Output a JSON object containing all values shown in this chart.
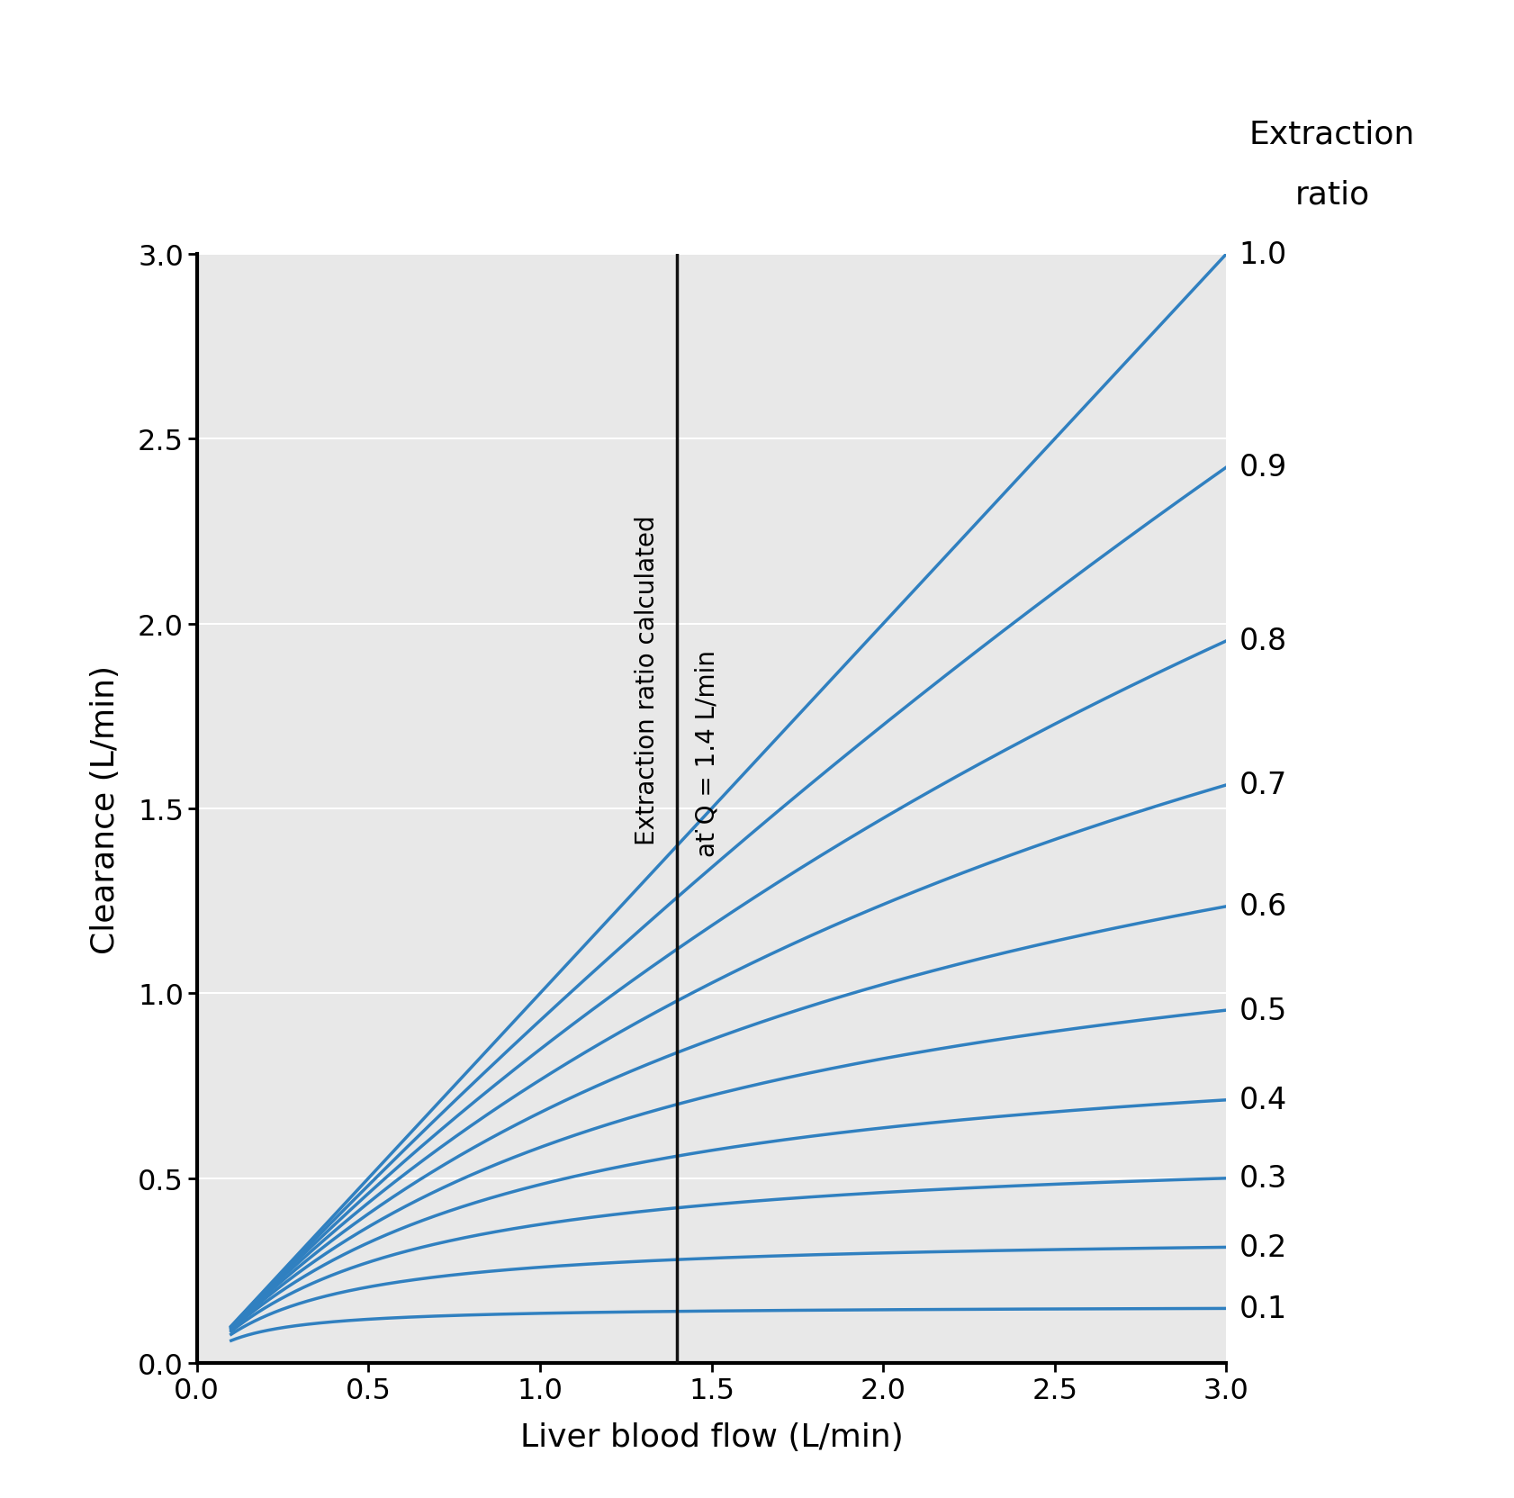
{
  "xlabel": "Liver blood flow (L/min)",
  "ylabel": "Clearance (L/min)",
  "extraction_label_line1": "Extraction",
  "extraction_label_line2": "ratio",
  "extraction_ratios": [
    0.1,
    0.2,
    0.3,
    0.4,
    0.5,
    0.6,
    0.7,
    0.8,
    0.9,
    1.0
  ],
  "xlim": [
    0,
    3.0
  ],
  "ylim": [
    0,
    3.0
  ],
  "x_start": 0.1,
  "Q_ref": 1.4,
  "vline_x": 1.4,
  "vline_text1": "Extraction ratio calculated",
  "vline_text2": "at ̇Q = 1.4 L/min",
  "line_color": "#3080c0",
  "background_color": "#e8e8e8",
  "vline_color": "#111111",
  "axis_label_fontsize": 26,
  "tick_fontsize": 23,
  "annot_fontsize": 20,
  "ratio_label_fontsize": 24,
  "extraction_title_fontsize": 26,
  "spine_linewidth": 3.0,
  "line_linewidth": 2.5
}
